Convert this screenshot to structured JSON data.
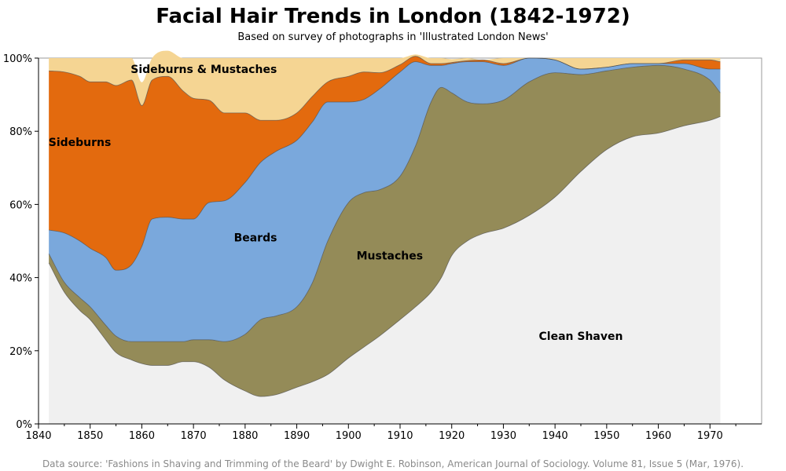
{
  "header": {
    "title": "Facial Hair Trends in London (1842-1972)",
    "subtitle": "Based on survey of photographs in 'Illustrated London News'"
  },
  "footer": {
    "source": "Data source: 'Fashions in Shaving and Trimming of the Beard' by Dwight E. Robinson, American Journal of Sociology. Volume 81, Issue 5 (Mar, 1976)."
  },
  "chart_data": {
    "type": "area",
    "stacking": "percent",
    "title": "Facial Hair Trends in London (1842-1972)",
    "subtitle": "Based on survey of photographs in 'Illustrated London News'",
    "xlabel": "",
    "ylabel": "",
    "xlim": [
      1840,
      1980
    ],
    "ylim": [
      0,
      100
    ],
    "x_ticks": [
      1840,
      1850,
      1860,
      1870,
      1880,
      1890,
      1900,
      1910,
      1920,
      1930,
      1940,
      1950,
      1960,
      1970
    ],
    "y_ticks": [
      "0%",
      "20%",
      "40%",
      "60%",
      "80%",
      "100%"
    ],
    "grid": false,
    "x": [
      1842,
      1845,
      1848,
      1850,
      1853,
      1855,
      1858,
      1860,
      1862,
      1865,
      1868,
      1870,
      1873,
      1876,
      1880,
      1883,
      1886,
      1890,
      1893,
      1896,
      1900,
      1903,
      1906,
      1910,
      1913,
      1916,
      1918,
      1920,
      1923,
      1926,
      1930,
      1935,
      1940,
      1945,
      1950,
      1955,
      1960,
      1965,
      1970,
      1972
    ],
    "series": [
      {
        "name": "Clean Shaven",
        "color": "#f0f0f0",
        "values": [
          44,
          36,
          31,
          28.5,
          23,
          19.5,
          17.5,
          16.5,
          16,
          16,
          17,
          17,
          15.5,
          12,
          9,
          7.5,
          8,
          10,
          11.5,
          13.5,
          18,
          21,
          24,
          28.5,
          32,
          36,
          40,
          46,
          50,
          52,
          53.5,
          57,
          62,
          69,
          75,
          78.5,
          79.5,
          81.5,
          83,
          84
        ]
      },
      {
        "name": "Mustaches",
        "color": "#948b58",
        "values": [
          2.5,
          2.7,
          3.5,
          3.5,
          4,
          4.5,
          5,
          6,
          6.5,
          6.5,
          5.5,
          6,
          7.5,
          10.5,
          15.5,
          21,
          21.5,
          22,
          27,
          36.5,
          42.5,
          42.2,
          40,
          39.2,
          44,
          52,
          52,
          44.5,
          38,
          35.5,
          35,
          36.5,
          34,
          26.5,
          21.5,
          19,
          18.5,
          15.5,
          11,
          6.5
        ]
      },
      {
        "name": "Beards",
        "color": "#7aa8dc",
        "values": [
          6.5,
          13.5,
          15.5,
          16,
          18.5,
          18,
          21,
          26,
          33.5,
          34,
          33.5,
          33,
          37.5,
          38.5,
          41.5,
          43,
          45,
          45.5,
          44,
          38,
          27.5,
          25.5,
          27.5,
          28.5,
          23,
          10,
          6,
          8,
          11,
          11.5,
          9.5,
          6.5,
          3.5,
          1.5,
          1,
          1,
          0.5,
          1.5,
          3,
          6.5
        ]
      },
      {
        "name": "Sideburns",
        "color": "#e36a0e",
        "values": [
          43.5,
          44,
          45,
          45.5,
          48,
          50.5,
          50.5,
          38.5,
          38,
          38.5,
          35,
          33,
          28,
          24,
          19,
          11.5,
          8.5,
          7.5,
          7,
          5.5,
          7,
          7.5,
          4.5,
          2,
          1.5,
          0.5,
          0.5,
          0.3,
          0.3,
          0.5,
          0.5,
          0,
          0,
          0,
          0,
          0,
          0,
          1,
          2.5,
          2
        ]
      },
      {
        "name": "Sideburns & Mustaches",
        "color": "#f5d593",
        "values": [
          3.5,
          3.8,
          5,
          6.5,
          6.5,
          7.5,
          6,
          6.4,
          6,
          7,
          9,
          11,
          11.5,
          15,
          15,
          17,
          17,
          15,
          10.5,
          6.5,
          5,
          3.8,
          4,
          1.8,
          0.5,
          1.5,
          1.5,
          0.9,
          0.7,
          0,
          1.5,
          0,
          0.5,
          3,
          2.5,
          1.5,
          1.5,
          0.5,
          0.5,
          1
        ]
      }
    ],
    "annotations": [
      {
        "text": "Sideburns & Mustaches",
        "x": 1872,
        "y": 97
      },
      {
        "text": "Sideburns",
        "x": 1848,
        "y": 77
      },
      {
        "text": "Beards",
        "x": 1882,
        "y": 51
      },
      {
        "text": "Mustaches",
        "x": 1908,
        "y": 46
      },
      {
        "text": "Clean Shaven",
        "x": 1945,
        "y": 24
      }
    ]
  }
}
